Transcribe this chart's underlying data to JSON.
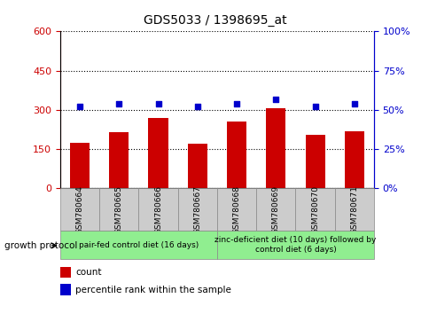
{
  "title": "GDS5033 / 1398695_at",
  "categories": [
    "GSM780664",
    "GSM780665",
    "GSM780666",
    "GSM780667",
    "GSM780668",
    "GSM780669",
    "GSM780670",
    "GSM780671"
  ],
  "bar_values": [
    175,
    215,
    270,
    170,
    255,
    305,
    205,
    220
  ],
  "scatter_values": [
    52,
    54,
    54,
    52,
    54,
    57,
    52,
    54
  ],
  "bar_color": "#cc0000",
  "scatter_color": "#0000cc",
  "ylim_left": [
    0,
    600
  ],
  "ylim_right": [
    0,
    100
  ],
  "yticks_left": [
    0,
    150,
    300,
    450,
    600
  ],
  "yticks_right": [
    0,
    25,
    50,
    75,
    100
  ],
  "ytick_labels_right": [
    "0%",
    "25%",
    "50%",
    "75%",
    "100%"
  ],
  "group1_label": "pair-fed control diet (16 days)",
  "group2_label": "zinc-deficient diet (10 days) followed by\ncontrol diet (6 days)",
  "group1_indices": [
    0,
    1,
    2,
    3
  ],
  "group2_indices": [
    4,
    5,
    6,
    7
  ],
  "group_color": "#90ee90",
  "xlabel_label": "growth protocol",
  "legend_count_label": "count",
  "legend_pct_label": "percentile rank within the sample",
  "title_fontsize": 10,
  "tick_fontsize": 8,
  "bar_width": 0.5,
  "cat_box_color": "#cccccc",
  "fig_width": 4.85,
  "fig_height": 3.54,
  "dpi": 100
}
